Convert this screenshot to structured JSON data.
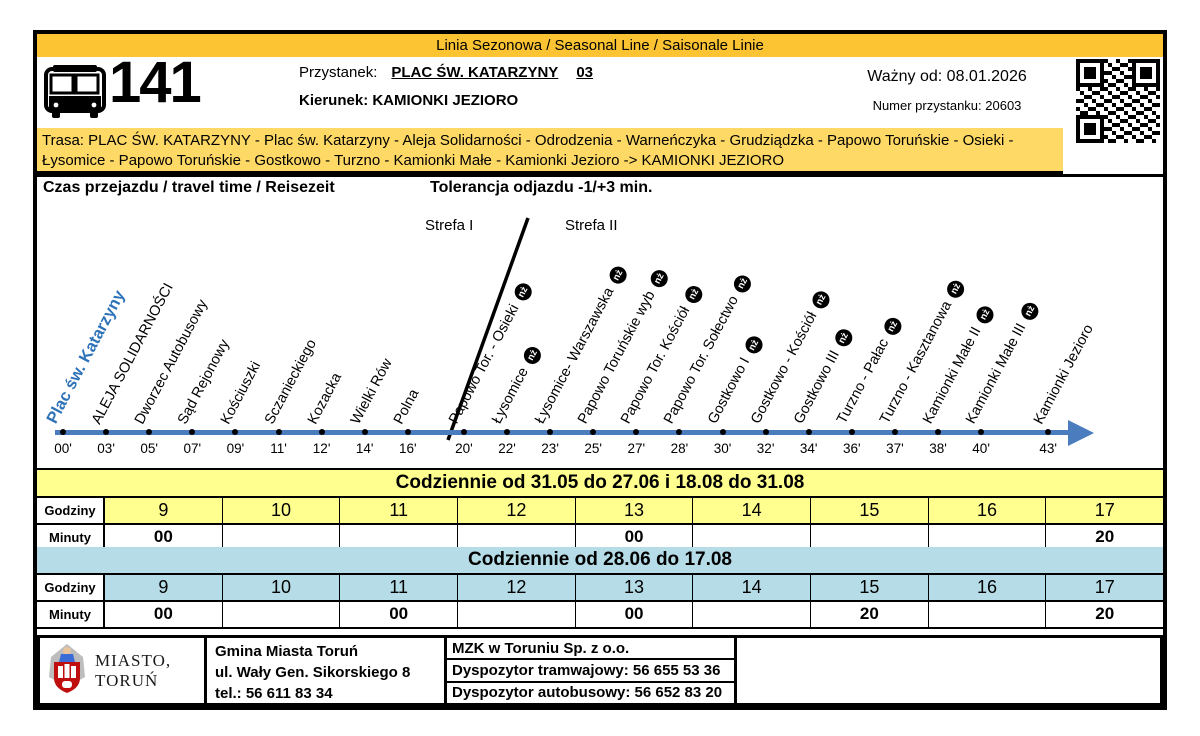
{
  "colors": {
    "gold": "#FCC433",
    "light_gold": "#FFD966",
    "pale_yellow": "#FFFF8F",
    "pale_blue": "#B5DCE7",
    "timeline_blue": "#4A7CBE",
    "first_stop_blue": "#2E73B8"
  },
  "header": {
    "season_line": "Linia Sezonowa / Seasonal Line / Saisonale Linie",
    "line_number": "141",
    "stop_label": "Przystanek:",
    "stop_name": "PLAC ŚW. KATARZYNY",
    "stop_platform": "03",
    "direction_line": "Kierunek: KAMIONKI JEZIORO",
    "valid_from": "Ważny od: 08.01.2026",
    "stop_number": "Numer przystanku: 20603"
  },
  "route": {
    "text": "Trasa: PLAC ŚW. KATARZYNY - Plac św. Katarzyny - Aleja Solidarności - Odrodzenia - Warneńczyka - Grudziądzka - Papowo Toruńskie - Osieki - Łysomice - Papowo Toruńskie - Gostkowo - Turzno - Kamionki Małe - Kamionki Jezioro -> KAMIONKI JEZIORO"
  },
  "info": {
    "travel_time": "Czas przejazdu / travel time / Reisezeit",
    "tolerance": "Tolerancja odjazdu -1/+3 min."
  },
  "diagram": {
    "zone1": "Strefa I",
    "zone2": "Strefa II",
    "nz_label": "nż",
    "stops": [
      {
        "name": "Plac św. Katarzyny",
        "time": "00'",
        "nz": false
      },
      {
        "name": "ALEJA SOLIDARNOŚCI",
        "time": "03'",
        "nz": false
      },
      {
        "name": "Dworzec Autobusowy",
        "time": "05'",
        "nz": false
      },
      {
        "name": "Sąd Rejonowy",
        "time": "07'",
        "nz": false
      },
      {
        "name": "Kościuszki",
        "time": "09'",
        "nz": false
      },
      {
        "name": "Sczanieckiego",
        "time": "11'",
        "nz": false
      },
      {
        "name": "Kozacka",
        "time": "12'",
        "nz": false
      },
      {
        "name": "Wielki Rów",
        "time": "14'",
        "nz": false
      },
      {
        "name": "Polna",
        "time": "16'",
        "nz": false
      },
      {
        "name": "Papowo Tor. - Osieki",
        "time": "20'",
        "nz": true
      },
      {
        "name": "Łysomice",
        "time": "22'",
        "nz": true
      },
      {
        "name": "Łysomice- Warszawska",
        "time": "23'",
        "nz": true
      },
      {
        "name": "Papowo Toruńskie wyb",
        "time": "25'",
        "nz": true
      },
      {
        "name": "Papowo Tor. Kościół",
        "time": "27'",
        "nz": true
      },
      {
        "name": "Papowo Tor. Sołectwo",
        "time": "28'",
        "nz": true
      },
      {
        "name": "Gostkowo I",
        "time": "30'",
        "nz": true
      },
      {
        "name": "Gostkowo - Kościół",
        "time": "32'",
        "nz": true
      },
      {
        "name": "Gostkowo III",
        "time": "34'",
        "nz": true
      },
      {
        "name": "Turzno - Pałac",
        "time": "36'",
        "nz": true
      },
      {
        "name": "Turzno - Kasztanowa",
        "time": "37'",
        "nz": true
      },
      {
        "name": "Kamionki Małe II",
        "time": "38'",
        "nz": true
      },
      {
        "name": "Kamionki Małe III",
        "time": "40'",
        "nz": true
      },
      {
        "name": "Kamionki Jezioro",
        "time": "43'",
        "nz": false
      }
    ]
  },
  "tables": [
    {
      "title": "Codziennie od 31.05 do 27.06 i 18.08 do 31.08",
      "theme": "yellow",
      "hours_label": "Godziny",
      "minutes_label": "Minuty",
      "hours": [
        "9",
        "10",
        "11",
        "12",
        "13",
        "14",
        "15",
        "16",
        "17"
      ],
      "minutes": [
        "00",
        "",
        "",
        "",
        "00",
        "",
        "",
        "",
        "20"
      ]
    },
    {
      "title": "Codziennie od 28.06 do 17.08",
      "theme": "blue",
      "hours_label": "Godziny",
      "minutes_label": "Minuty",
      "hours": [
        "9",
        "10",
        "11",
        "12",
        "13",
        "14",
        "15",
        "16",
        "17"
      ],
      "minutes": [
        "00",
        "",
        "00",
        "",
        "00",
        "",
        "20",
        "",
        "20"
      ]
    }
  ],
  "footer": {
    "city_line1": "MIASTO,",
    "city_line2": "TORUŃ",
    "gmina": [
      "Gmina Miasta Toruń",
      "ul. Wały Gen. Sikorskiego 8",
      "tel.: 56 611 83 34"
    ],
    "mzk": [
      "MZK w Toruniu Sp. z o.o.",
      "Dyspozytor tramwajowy: 56 655 53 36",
      "Dyspozytor autobusowy: 56 652 83 20"
    ]
  }
}
